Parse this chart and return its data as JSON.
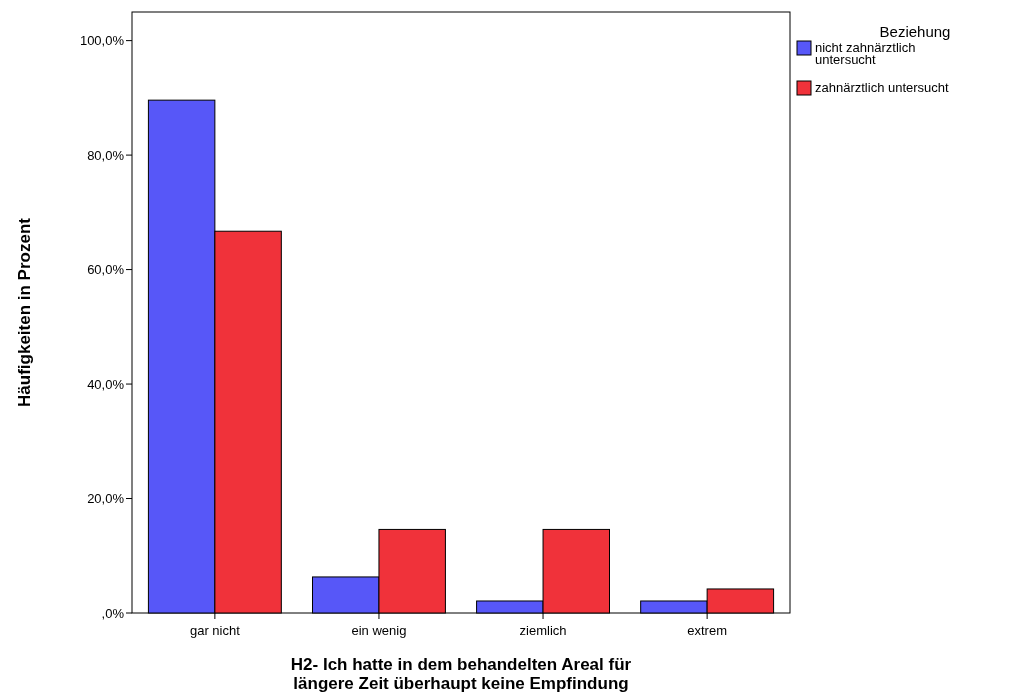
{
  "chart_data": {
    "type": "bar",
    "xlabel": "H2- Ich hatte in dem behandelten Areal für längere Zeit überhaupt keine Empfindung",
    "ylabel": "Häufigkeiten in Prozent",
    "legend_title": "Beziehung",
    "categories": [
      "gar nicht",
      "ein wenig",
      "ziemlich",
      "extrem"
    ],
    "series": [
      {
        "name": "nicht zahnärztlich untersucht",
        "color": "#5757f8",
        "values": [
          89.6,
          6.3,
          2.1,
          2.1
        ]
      },
      {
        "name": "zahnärztlich untersucht",
        "color": "#f0323a",
        "values": [
          66.7,
          14.6,
          14.6,
          4.2
        ]
      }
    ],
    "ylim": [
      0,
      105
    ],
    "yticks": [
      {
        "value": 0,
        "label": ",0%"
      },
      {
        "value": 20,
        "label": "20,0%"
      },
      {
        "value": 40,
        "label": "40,0%"
      },
      {
        "value": 60,
        "label": "60,0%"
      },
      {
        "value": 80,
        "label": "80,0%"
      },
      {
        "value": 100,
        "label": "100,0%"
      }
    ],
    "legend": "top right",
    "grid": false
  }
}
